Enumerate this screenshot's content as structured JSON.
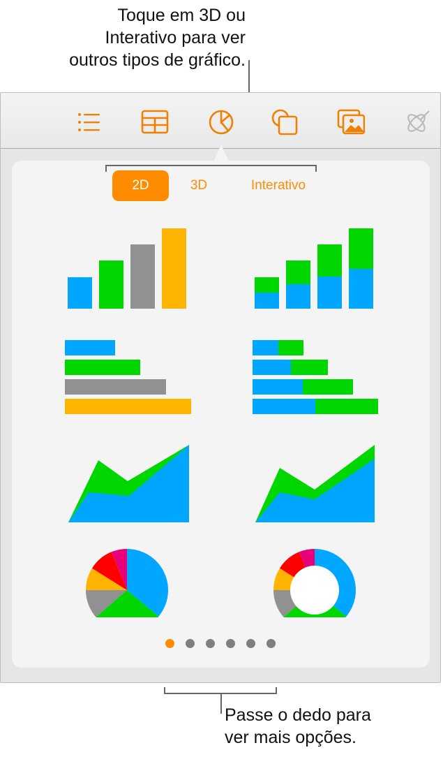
{
  "callouts": {
    "top": [
      "Toque em 3D ou",
      "Interativo para ver",
      "outros tipos de gráfico."
    ],
    "bottom": [
      "Passe o dedo para",
      "ver mais opções."
    ]
  },
  "toolbar": {
    "icons": [
      "list-icon",
      "table-icon",
      "chart-icon",
      "shapes-icon",
      "media-icon",
      "drawing-icon"
    ],
    "selected": "chart-icon",
    "accent": "#ff8c00"
  },
  "segments": [
    {
      "label": "2D",
      "active": true
    },
    {
      "label": "3D",
      "active": false
    },
    {
      "label": "Interativo",
      "active": false
    }
  ],
  "chart_styles": [
    "column",
    "stacked-column",
    "bar",
    "stacked-bar",
    "area",
    "stacked-area",
    "pie",
    "donut"
  ],
  "palette": {
    "blue": "#00a6ff",
    "green": "#00d600",
    "gray": "#919191",
    "orange": "#ffb400",
    "red": "#ff0000",
    "magenta": "#e6007a"
  },
  "pagination": {
    "pages": 6,
    "current": 1
  }
}
